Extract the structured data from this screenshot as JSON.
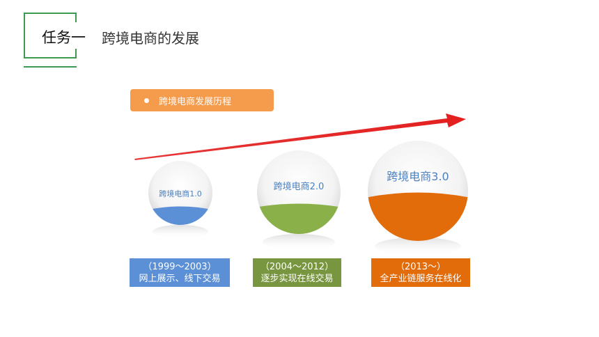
{
  "header": {
    "task": "任务一",
    "title": "跨境电商的发展"
  },
  "badge": {
    "text": "跨境电商发展历程",
    "color": "#f59b4c"
  },
  "stages": [
    {
      "label": "跨境电商1.0",
      "years": "（1999～2003）",
      "desc": "网上展示、线下交易",
      "color": "#5b8fd6"
    },
    {
      "label": "跨境电商2.0",
      "years": "（2004～2012）",
      "desc": "逐步实现在线交易",
      "color": "#8ab04a"
    },
    {
      "label": "跨境电商3.0",
      "years": "（2013～）",
      "desc": "全产业链服务在线化",
      "color": "#e36c0a"
    }
  ],
  "arrow_color": "#e32020",
  "accent_green": "#3b9a4d"
}
